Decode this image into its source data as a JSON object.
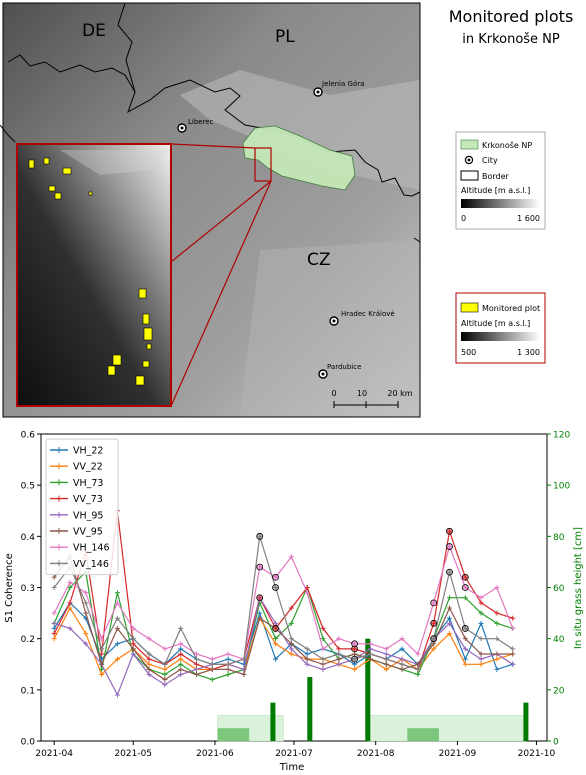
{
  "map": {
    "title_line1": "Monitored plots",
    "title_line2": "in Krkonoše NP",
    "countries": [
      "DE",
      "PL",
      "CZ"
    ],
    "cities": [
      "Jelenia Góra",
      "Liberec",
      "Hradec Králové",
      "Pardubice"
    ],
    "legend1": {
      "np_label": "Krkonoše NP",
      "city_label": "City",
      "border_label": "Border",
      "altitude_label": "Altitude [m a.s.l.]",
      "altitude_min": "0",
      "altitude_max": "1 600"
    },
    "legend2": {
      "plot_label": "Monitored plot",
      "altitude_label": "Altitude [m a.s.l.]",
      "altitude_min": "500",
      "altitude_max": "1 300"
    },
    "scale": [
      "0",
      "10",
      "20 km"
    ],
    "colors": {
      "np_fill": "#c5e8b7",
      "plot_fill": "#ffff00",
      "inset_frame": "#b00000"
    }
  },
  "chart_data": {
    "type": "line",
    "xlabel": "Time",
    "ylabel": "S1 Coherence",
    "ylabel_right": "In situ grass height [cm]",
    "ylim": [
      0,
      0.6
    ],
    "ylim_right": [
      0,
      120
    ],
    "xlim": [
      "2021-03-27",
      "2021-10-05"
    ],
    "xticks": [
      "2021-04",
      "2021-05",
      "2021-06",
      "2021-07",
      "2021-08",
      "2021-09",
      "2021-10"
    ],
    "yticks": [
      "0.0",
      "0.1",
      "0.2",
      "0.3",
      "0.4",
      "0.5",
      "0.6"
    ],
    "yticks_right": [
      "0",
      "20",
      "40",
      "60",
      "80",
      "100",
      "120"
    ],
    "legend_position": "top-left",
    "series": [
      {
        "name": "VH_22",
        "color": "#1f77b4",
        "x": [
          "2021-04-01",
          "2021-04-07",
          "2021-04-13",
          "2021-04-19",
          "2021-04-25",
          "2021-05-01",
          "2021-05-07",
          "2021-05-13",
          "2021-05-19",
          "2021-05-25",
          "2021-05-31",
          "2021-06-06",
          "2021-06-12",
          "2021-06-18",
          "2021-06-24",
          "2021-06-30",
          "2021-07-06",
          "2021-07-12",
          "2021-07-18",
          "2021-07-24",
          "2021-07-30",
          "2021-08-05",
          "2021-08-11",
          "2021-08-17",
          "2021-08-23",
          "2021-08-29",
          "2021-09-04",
          "2021-09-10",
          "2021-09-16",
          "2021-09-22"
        ],
        "y": [
          0.22,
          0.27,
          0.24,
          0.16,
          0.19,
          0.2,
          0.17,
          0.15,
          0.18,
          0.16,
          0.15,
          0.16,
          0.15,
          0.25,
          0.16,
          0.19,
          0.17,
          0.18,
          0.17,
          0.15,
          0.17,
          0.16,
          0.18,
          0.15,
          0.2,
          0.24,
          0.16,
          0.23,
          0.14,
          0.15
        ]
      },
      {
        "name": "VV_22",
        "color": "#ff7f0e",
        "x": [
          "2021-04-01",
          "2021-04-07",
          "2021-04-13",
          "2021-04-19",
          "2021-04-25",
          "2021-05-01",
          "2021-05-07",
          "2021-05-13",
          "2021-05-19",
          "2021-05-25",
          "2021-05-31",
          "2021-06-06",
          "2021-06-12",
          "2021-06-18",
          "2021-06-24",
          "2021-06-30",
          "2021-07-06",
          "2021-07-12",
          "2021-07-18",
          "2021-07-24",
          "2021-07-30",
          "2021-08-05",
          "2021-08-11",
          "2021-08-17",
          "2021-08-23",
          "2021-08-29",
          "2021-09-04",
          "2021-09-10",
          "2021-09-16",
          "2021-09-22"
        ],
        "y": [
          0.2,
          0.26,
          0.21,
          0.13,
          0.16,
          0.18,
          0.15,
          0.14,
          0.16,
          0.14,
          0.14,
          0.15,
          0.14,
          0.24,
          0.19,
          0.17,
          0.16,
          0.16,
          0.15,
          0.14,
          0.16,
          0.14,
          0.16,
          0.14,
          0.18,
          0.21,
          0.15,
          0.15,
          0.16,
          0.17
        ]
      },
      {
        "name": "VH_73",
        "color": "#2ca02c",
        "x": [
          "2021-04-01",
          "2021-04-07",
          "2021-04-13",
          "2021-04-19",
          "2021-04-25",
          "2021-05-01",
          "2021-05-07",
          "2021-05-13",
          "2021-05-19",
          "2021-05-25",
          "2021-05-31",
          "2021-06-06",
          "2021-06-12",
          "2021-06-18",
          "2021-06-24",
          "2021-06-30",
          "2021-07-06",
          "2021-07-12",
          "2021-07-18",
          "2021-07-24",
          "2021-07-30",
          "2021-08-05",
          "2021-08-11",
          "2021-08-17",
          "2021-08-23",
          "2021-08-29",
          "2021-09-04",
          "2021-09-10",
          "2021-09-16",
          "2021-09-22"
        ],
        "y": [
          0.23,
          0.3,
          0.33,
          0.14,
          0.29,
          0.17,
          0.14,
          0.13,
          0.15,
          0.13,
          0.12,
          0.13,
          0.14,
          0.27,
          0.2,
          0.23,
          0.3,
          0.2,
          0.16,
          0.17,
          0.16,
          0.15,
          0.14,
          0.13,
          0.2,
          0.28,
          0.28,
          0.25,
          0.23,
          0.22
        ]
      },
      {
        "name": "VV_73",
        "color": "#d62728",
        "x": [
          "2021-04-01",
          "2021-04-07",
          "2021-04-13",
          "2021-04-19",
          "2021-04-25",
          "2021-05-01",
          "2021-05-07",
          "2021-05-13",
          "2021-05-19",
          "2021-05-25",
          "2021-05-31",
          "2021-06-06",
          "2021-06-12",
          "2021-06-18",
          "2021-06-24",
          "2021-06-30",
          "2021-07-06",
          "2021-07-12",
          "2021-07-18",
          "2021-07-24",
          "2021-07-30",
          "2021-08-05",
          "2021-08-11",
          "2021-08-17",
          "2021-08-23",
          "2021-08-29",
          "2021-09-04",
          "2021-09-10",
          "2021-09-16",
          "2021-09-22"
        ],
        "y": [
          0.21,
          0.27,
          0.37,
          0.17,
          0.45,
          0.19,
          0.16,
          0.15,
          0.17,
          0.15,
          0.14,
          0.15,
          0.16,
          0.28,
          0.22,
          0.26,
          0.3,
          0.22,
          0.18,
          0.18,
          0.17,
          0.16,
          0.15,
          0.14,
          0.23,
          0.41,
          0.32,
          0.27,
          0.25,
          0.24
        ]
      },
      {
        "name": "VH_95",
        "color": "#9467bd",
        "x": [
          "2021-04-01",
          "2021-04-07",
          "2021-04-13",
          "2021-04-19",
          "2021-04-25",
          "2021-05-01",
          "2021-05-07",
          "2021-05-13",
          "2021-05-19",
          "2021-05-25",
          "2021-05-31",
          "2021-06-06",
          "2021-06-12",
          "2021-06-18",
          "2021-06-24",
          "2021-06-30",
          "2021-07-06",
          "2021-07-12",
          "2021-07-18",
          "2021-07-24",
          "2021-07-30",
          "2021-08-05",
          "2021-08-11",
          "2021-08-17",
          "2021-08-23",
          "2021-08-29",
          "2021-09-04",
          "2021-09-10",
          "2021-09-16",
          "2021-09-22"
        ],
        "y": [
          0.23,
          0.22,
          0.19,
          0.15,
          0.09,
          0.17,
          0.13,
          0.11,
          0.13,
          0.14,
          0.15,
          0.15,
          0.14,
          0.28,
          0.23,
          0.18,
          0.15,
          0.14,
          0.15,
          0.16,
          0.18,
          0.17,
          0.16,
          0.15,
          0.2,
          0.23,
          0.18,
          0.16,
          0.17,
          0.15
        ]
      },
      {
        "name": "VV_95",
        "color": "#8c564b",
        "x": [
          "2021-04-01",
          "2021-04-07",
          "2021-04-13",
          "2021-04-19",
          "2021-04-25",
          "2021-05-01",
          "2021-05-07",
          "2021-05-13",
          "2021-05-19",
          "2021-05-25",
          "2021-05-31",
          "2021-06-06",
          "2021-06-12",
          "2021-06-18",
          "2021-06-24",
          "2021-06-30",
          "2021-07-06",
          "2021-07-12",
          "2021-07-18",
          "2021-07-24",
          "2021-07-30",
          "2021-08-05",
          "2021-08-11",
          "2021-08-17",
          "2021-08-23",
          "2021-08-29",
          "2021-09-04",
          "2021-09-10",
          "2021-09-16",
          "2021-09-22"
        ],
        "y": [
          0.32,
          0.36,
          0.25,
          0.15,
          0.22,
          0.18,
          0.14,
          0.12,
          0.14,
          0.13,
          0.14,
          0.14,
          0.13,
          0.24,
          0.22,
          0.19,
          0.16,
          0.15,
          0.16,
          0.17,
          0.16,
          0.15,
          0.14,
          0.15,
          0.19,
          0.26,
          0.2,
          0.17,
          0.17,
          0.17
        ]
      },
      {
        "name": "VH_146",
        "color": "#e377c2",
        "x": [
          "2021-04-01",
          "2021-04-07",
          "2021-04-13",
          "2021-04-19",
          "2021-04-25",
          "2021-05-01",
          "2021-05-07",
          "2021-05-13",
          "2021-05-19",
          "2021-05-25",
          "2021-05-31",
          "2021-06-06",
          "2021-06-12",
          "2021-06-18",
          "2021-06-24",
          "2021-06-30",
          "2021-07-06",
          "2021-07-12",
          "2021-07-18",
          "2021-07-24",
          "2021-07-30",
          "2021-08-05",
          "2021-08-11",
          "2021-08-17",
          "2021-08-23",
          "2021-08-29",
          "2021-09-04",
          "2021-09-10",
          "2021-09-16",
          "2021-09-22"
        ],
        "y": [
          0.25,
          0.31,
          0.29,
          0.2,
          0.27,
          0.22,
          0.2,
          0.18,
          0.19,
          0.17,
          0.16,
          0.17,
          0.16,
          0.34,
          0.32,
          0.36,
          0.29,
          0.18,
          0.2,
          0.19,
          0.19,
          0.18,
          0.2,
          0.17,
          0.27,
          0.38,
          0.3,
          0.28,
          0.3,
          0.22
        ]
      },
      {
        "name": "VV_146",
        "color": "#7f7f7f",
        "x": [
          "2021-04-01",
          "2021-04-07",
          "2021-04-13",
          "2021-04-19",
          "2021-04-25",
          "2021-05-01",
          "2021-05-07",
          "2021-05-13",
          "2021-05-19",
          "2021-05-25",
          "2021-05-31",
          "2021-06-06",
          "2021-06-12",
          "2021-06-18",
          "2021-06-24",
          "2021-06-30",
          "2021-07-06",
          "2021-07-12",
          "2021-07-18",
          "2021-07-24",
          "2021-07-30",
          "2021-08-05",
          "2021-08-11",
          "2021-08-17",
          "2021-08-23",
          "2021-08-29",
          "2021-09-04",
          "2021-09-10",
          "2021-09-16",
          "2021-09-22"
        ],
        "y": [
          0.3,
          0.34,
          0.27,
          0.18,
          0.24,
          0.2,
          0.17,
          0.15,
          0.22,
          0.16,
          0.15,
          0.15,
          0.16,
          0.4,
          0.3,
          0.2,
          0.18,
          0.16,
          0.17,
          0.16,
          0.17,
          0.16,
          0.15,
          0.14,
          0.2,
          0.33,
          0.22,
          0.2,
          0.2,
          0.18
        ]
      }
    ],
    "grass_bars": {
      "color": "#007a00",
      "x": [
        "2021-06-23",
        "2021-07-07",
        "2021-07-29",
        "2021-09-27"
      ],
      "y": [
        15,
        25,
        40,
        15
      ]
    },
    "grass_ranges": {
      "color": "#d9f2d9",
      "ranges": [
        [
          "2021-06-02",
          "2021-06-27",
          10
        ],
        [
          "2021-07-29",
          "2021-09-27",
          10
        ]
      ]
    },
    "grass_boxes": {
      "color": "#5cb85c",
      "ranges": [
        [
          "2021-06-02",
          "2021-06-14",
          5
        ],
        [
          "2021-08-13",
          "2021-08-25",
          5
        ]
      ]
    },
    "highlighted_points": [
      "2021-06-18",
      "2021-06-24",
      "2021-07-24",
      "2021-08-23",
      "2021-08-29",
      "2021-09-04"
    ]
  }
}
